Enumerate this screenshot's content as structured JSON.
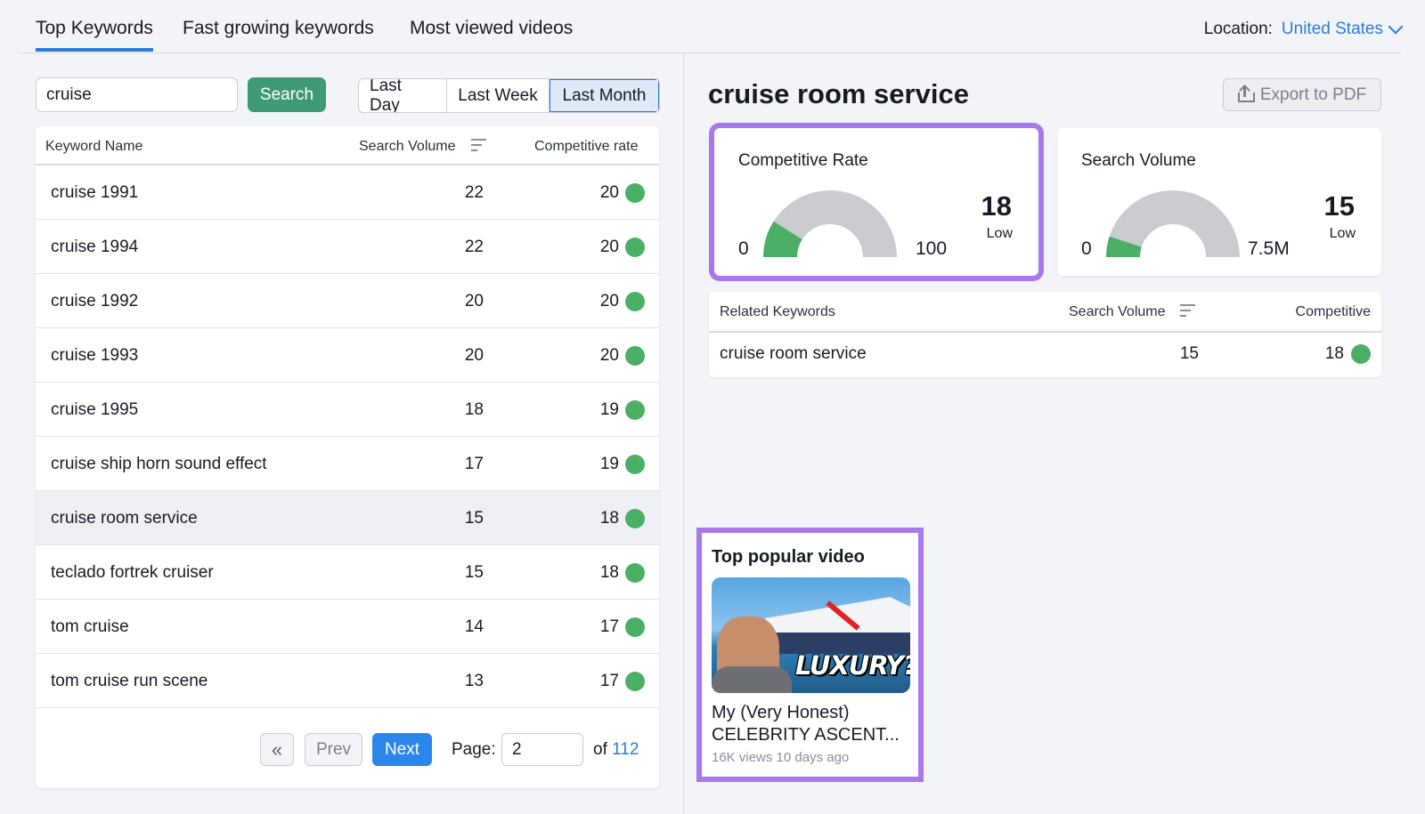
{
  "tabs": [
    {
      "label": "Top Keywords",
      "active": true
    },
    {
      "label": "Fast growing keywords",
      "active": false
    },
    {
      "label": "Most viewed videos",
      "active": false
    }
  ],
  "location": {
    "label": "Location:",
    "value": "United States"
  },
  "search": {
    "value": "cruise",
    "button_label": "Search"
  },
  "periods": [
    {
      "label": "Last Day",
      "active": false
    },
    {
      "label": "Last Week",
      "active": false
    },
    {
      "label": "Last Month",
      "active": true
    }
  ],
  "keyword_table": {
    "headers": {
      "name": "Keyword Name",
      "volume": "Search Volume",
      "rate": "Competitive rate"
    },
    "rows": [
      {
        "name": "cruise 1991",
        "volume": "22",
        "rate": "20",
        "selected": false
      },
      {
        "name": "cruise 1994",
        "volume": "22",
        "rate": "20",
        "selected": false
      },
      {
        "name": "cruise 1992",
        "volume": "20",
        "rate": "20",
        "selected": false
      },
      {
        "name": "cruise 1993",
        "volume": "20",
        "rate": "20",
        "selected": false
      },
      {
        "name": "cruise 1995",
        "volume": "18",
        "rate": "19",
        "selected": false
      },
      {
        "name": "cruise ship horn sound effect",
        "volume": "17",
        "rate": "19",
        "selected": false
      },
      {
        "name": "cruise room service",
        "volume": "15",
        "rate": "18",
        "selected": true
      },
      {
        "name": "teclado fortrek cruiser",
        "volume": "15",
        "rate": "18",
        "selected": false
      },
      {
        "name": "tom cruise",
        "volume": "14",
        "rate": "17",
        "selected": false
      },
      {
        "name": "tom cruise run scene",
        "volume": "13",
        "rate": "17",
        "selected": false
      }
    ],
    "status_color": "#4caf66"
  },
  "pagination": {
    "first_glyph": "«",
    "prev_label": "Prev",
    "next_label": "Next",
    "page_label": "Page:",
    "page_value": "2",
    "of_label": "of",
    "total_pages": "112"
  },
  "detail": {
    "title": "cruise room service",
    "export_label": "Export to PDF",
    "competitive_rate": {
      "label": "Competitive Rate",
      "min": "0",
      "max": "100",
      "value": "18",
      "level": "Low",
      "fraction": 0.18
    },
    "search_volume": {
      "label": "Search Volume",
      "min": "0",
      "max": "7.5M",
      "value": "15",
      "level": "Low",
      "fraction": 0.1
    },
    "gauge_colors": {
      "fill": "#4caf66",
      "track": "#c9cbd0"
    },
    "highlight_color": "#a879ec"
  },
  "related": {
    "headers": {
      "name": "Related Keywords",
      "volume": "Search Volume",
      "competitive": "Competitive"
    },
    "rows": [
      {
        "name": "cruise room service",
        "volume": "15",
        "competitive": "18"
      }
    ]
  },
  "video": {
    "section_title": "Top popular video",
    "thumbnail_text": "LUXURY?",
    "title": "My (Very Honest) CELEBRITY ASCENT...",
    "meta": "16K views 10 days ago"
  }
}
